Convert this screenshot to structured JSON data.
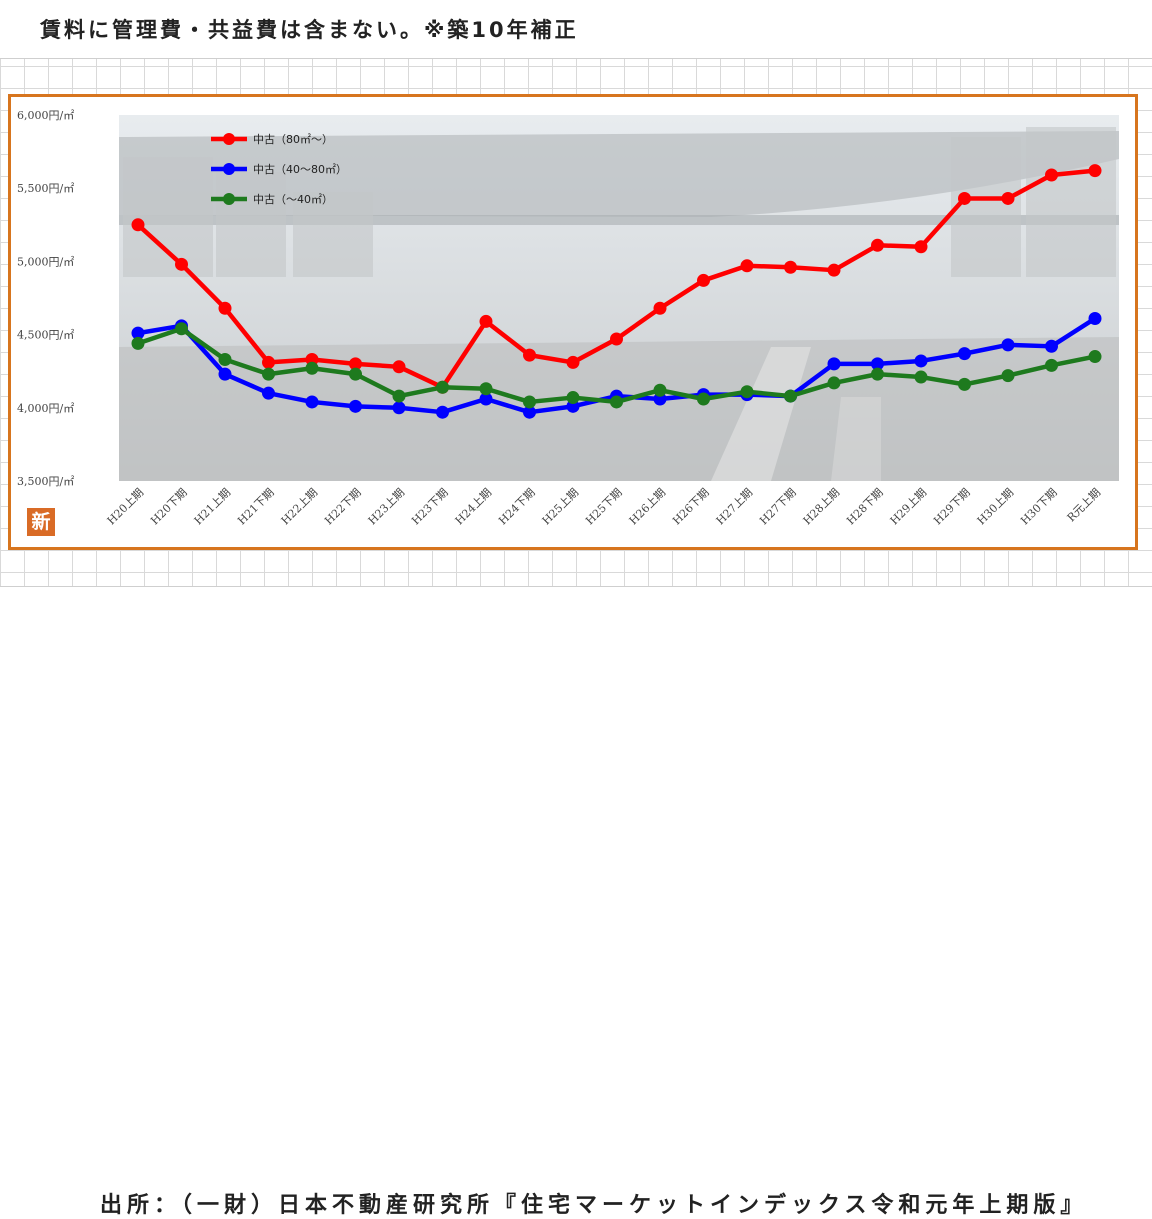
{
  "header": {
    "note": "賃料に管理費・共益費は含まない。※築10年補正"
  },
  "footer": {
    "source": "出所：（一財）日本不動産研究所『住宅マーケットインデックス令和元年上期版』"
  },
  "logo": {
    "glyph": "新",
    "icon": "shin-logo-icon"
  },
  "colors": {
    "frame": "#d7751e",
    "series_red": "#ff0000",
    "series_blue": "#0000ff",
    "series_green": "#1e7a1e"
  },
  "chart_data": {
    "type": "line",
    "categories": [
      "H20上期",
      "H20下期",
      "H21上期",
      "H21下期",
      "H22上期",
      "H22下期",
      "H23上期",
      "H23下期",
      "H24上期",
      "H24下期",
      "H25上期",
      "H25下期",
      "H26上期",
      "H26下期",
      "H27上期",
      "H27下期",
      "H28上期",
      "H28下期",
      "H29上期",
      "H29下期",
      "H30上期",
      "H30下期",
      "R元上期"
    ],
    "ylim": [
      3500,
      6000
    ],
    "yticks": [
      3500,
      4000,
      4500,
      5000,
      5500,
      6000
    ],
    "ytick_labels": [
      "3,500円/㎡",
      "4,000円/㎡",
      "4,500円/㎡",
      "5,000円/㎡",
      "5,500円/㎡",
      "6,000円/㎡"
    ],
    "legend_position": "top-left",
    "series": [
      {
        "name": "中古（80㎡～）",
        "color": "#ff0000",
        "values": [
          5250,
          4980,
          4680,
          4310,
          4330,
          4300,
          4280,
          4140,
          4590,
          4360,
          4310,
          4470,
          4680,
          4870,
          4970,
          4960,
          4940,
          5110,
          5100,
          5430,
          5430,
          5590,
          5620
        ]
      },
      {
        "name": "中古（40～80㎡）",
        "color": "#0000ff",
        "values": [
          4510,
          4560,
          4230,
          4100,
          4040,
          4010,
          4000,
          3970,
          4060,
          3970,
          4010,
          4080,
          4060,
          4090,
          4090,
          4080,
          4300,
          4300,
          4320,
          4370,
          4430,
          4420,
          4610
        ]
      },
      {
        "name": "中古（～40㎡）",
        "color": "#1e7a1e",
        "values": [
          4440,
          4540,
          4330,
          4230,
          4270,
          4230,
          4080,
          4140,
          4130,
          4040,
          4070,
          4040,
          4120,
          4060,
          4110,
          4080,
          4170,
          4230,
          4210,
          4160,
          4220,
          4290,
          4350
        ]
      }
    ]
  }
}
